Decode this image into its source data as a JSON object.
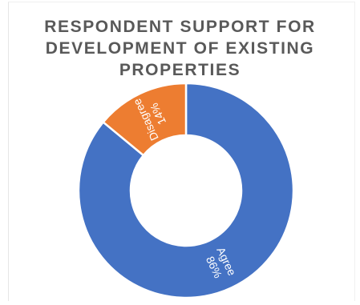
{
  "chart_data": {
    "type": "pie",
    "donut": true,
    "title_lines": [
      "RESPONDENT SUPPORT FOR",
      "DEVELOPMENT OF EXISTING",
      "PROPERTIES"
    ],
    "slices": [
      {
        "label": "Agree",
        "value": 86,
        "value_label": "86%",
        "color": "#4472C4"
      },
      {
        "label": "Disagree",
        "value": 14,
        "value_label": "14%",
        "color": "#ED7D31"
      }
    ],
    "start": "top",
    "direction": "clockwise",
    "legend": "none"
  }
}
